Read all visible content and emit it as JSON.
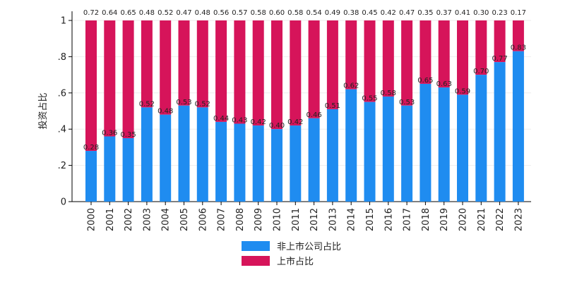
{
  "chart_data": {
    "type": "bar",
    "stacked": true,
    "title": "",
    "xlabel": "",
    "ylabel": "投资占比",
    "ylim": [
      0,
      1
    ],
    "yticks": [
      0,
      0.2,
      0.4,
      0.6,
      0.8,
      1
    ],
    "ytick_labels": [
      "0",
      ".2",
      ".4",
      ".6",
      ".8",
      "1"
    ],
    "grid": true,
    "legend_position": "bottom",
    "categories": [
      "2000",
      "2001",
      "2002",
      "2003",
      "2004",
      "2005",
      "2006",
      "2007",
      "2008",
      "2009",
      "2010",
      "2011",
      "2012",
      "2013",
      "2014",
      "2015",
      "2016",
      "2017",
      "2018",
      "2019",
      "2020",
      "2021",
      "2022",
      "2023"
    ],
    "series": [
      {
        "name": "非上市公司占比",
        "color": "#1f8cf0",
        "values": [
          0.28,
          0.36,
          0.35,
          0.52,
          0.48,
          0.53,
          0.52,
          0.44,
          0.43,
          0.42,
          0.4,
          0.42,
          0.46,
          0.51,
          0.62,
          0.55,
          0.58,
          0.53,
          0.65,
          0.63,
          0.59,
          0.7,
          0.77,
          0.83
        ],
        "labels": [
          "0.28",
          "0.36",
          "0.35",
          "0.52",
          "0.48",
          "0.53",
          "0.52",
          "0.44",
          "0.43",
          "0.42",
          "0.40",
          "0.42",
          "0.46",
          "0.51",
          "0.62",
          "0.55",
          "0.58",
          "0.53",
          "0.65",
          "0.63",
          "0.59",
          "0.70",
          "0.77",
          "0.83"
        ]
      },
      {
        "name": "上市占比",
        "color": "#d6145a",
        "values": [
          0.72,
          0.64,
          0.65,
          0.48,
          0.52,
          0.47,
          0.48,
          0.56,
          0.57,
          0.58,
          0.6,
          0.58,
          0.54,
          0.49,
          0.38,
          0.45,
          0.42,
          0.47,
          0.35,
          0.37,
          0.41,
          0.3,
          0.23,
          0.17
        ],
        "labels": [
          "0.72",
          "0.64",
          "0.65",
          "0.48",
          "0.52",
          "0.47",
          "0.48",
          "0.56",
          "0.57",
          "0.58",
          "0.60",
          "0.58",
          "0.54",
          "0.49",
          "0.38",
          "0.45",
          "0.42",
          "0.47",
          "0.35",
          "0.37",
          "0.41",
          "0.30",
          "0.23",
          "0.17"
        ]
      }
    ]
  }
}
